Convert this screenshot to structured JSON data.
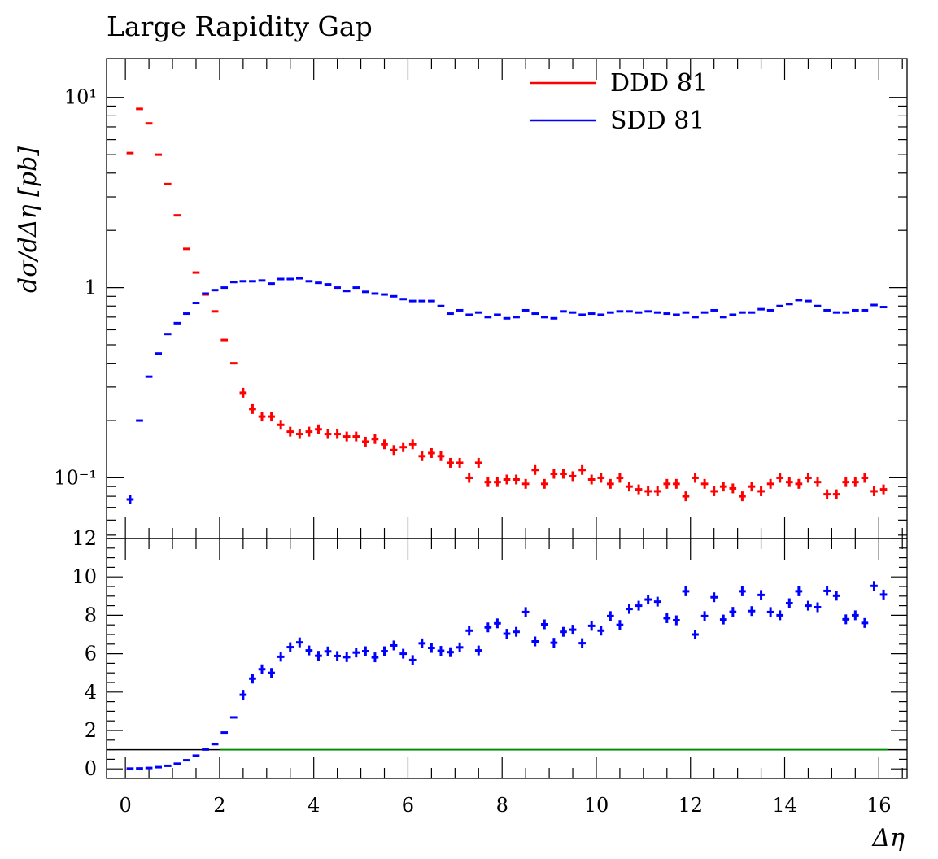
{
  "chart_data": {
    "type": "scatter",
    "title": "Large Rapidity Gap",
    "ylabel": "dσ/dΔη [pb]",
    "xlabel": "Δη",
    "legend": {
      "placement": "top-right",
      "entries": [
        "DDD 81",
        "SDD 81"
      ]
    },
    "colors": {
      "DDD 81": "#ff0000",
      "SDD 81": "#0000ff",
      "ratio_reference": "#00aa00"
    },
    "main": {
      "yscale": "log",
      "ylim": [
        0.048,
        16
      ],
      "xlim": [
        -0.4,
        16.6
      ],
      "y_ticks": [
        {
          "value": 10,
          "label": "10¹"
        },
        {
          "value": 1,
          "label": "1"
        },
        {
          "value": 0.1,
          "label": "10⁻¹"
        }
      ],
      "bin_width": 0.2,
      "x": [
        0.1,
        0.3,
        0.5,
        0.7,
        0.9,
        1.1,
        1.3,
        1.5,
        1.7,
        1.9,
        2.1,
        2.3,
        2.5,
        2.7,
        2.9,
        3.1,
        3.3,
        3.5,
        3.7,
        3.9,
        4.1,
        4.3,
        4.5,
        4.7,
        4.9,
        5.1,
        5.3,
        5.5,
        5.7,
        5.9,
        6.1,
        6.3,
        6.5,
        6.7,
        6.9,
        7.1,
        7.3,
        7.5,
        7.7,
        7.9,
        8.1,
        8.3,
        8.5,
        8.7,
        8.9,
        9.1,
        9.3,
        9.5,
        9.7,
        9.9,
        10.1,
        10.3,
        10.5,
        10.7,
        10.9,
        11.1,
        11.3,
        11.5,
        11.7,
        11.9,
        12.1,
        12.3,
        12.5,
        12.7,
        12.9,
        13.1,
        13.3,
        13.5,
        13.7,
        13.9,
        14.1,
        14.3,
        14.5,
        14.7,
        14.9,
        15.1,
        15.3,
        15.5,
        15.7,
        15.9,
        16.1
      ],
      "series": [
        {
          "name": "DDD 81",
          "values": [
            5.1,
            8.7,
            7.3,
            5.0,
            3.5,
            2.4,
            1.6,
            1.2,
            0.92,
            0.75,
            0.53,
            0.4,
            0.28,
            0.23,
            0.21,
            0.21,
            0.19,
            0.175,
            0.17,
            0.175,
            0.18,
            0.17,
            0.17,
            0.165,
            0.165,
            0.155,
            0.16,
            0.15,
            0.14,
            0.145,
            0.15,
            0.13,
            0.135,
            0.13,
            0.12,
            0.12,
            0.1,
            0.12,
            0.095,
            0.095,
            0.098,
            0.098,
            0.093,
            0.11,
            0.093,
            0.105,
            0.105,
            0.102,
            0.11,
            0.098,
            0.1,
            0.093,
            0.1,
            0.09,
            0.087,
            0.085,
            0.085,
            0.093,
            0.093,
            0.08,
            0.1,
            0.093,
            0.085,
            0.09,
            0.088,
            0.08,
            0.09,
            0.085,
            0.093,
            0.1,
            0.095,
            0.093,
            0.1,
            0.095,
            0.082,
            0.082,
            0.095,
            0.095,
            0.1,
            0.085,
            0.087
          ]
        },
        {
          "name": "SDD 81",
          "values": [
            0.077,
            0.2,
            0.34,
            0.45,
            0.57,
            0.65,
            0.73,
            0.83,
            0.93,
            0.97,
            1.0,
            1.07,
            1.08,
            1.08,
            1.09,
            1.05,
            1.11,
            1.11,
            1.12,
            1.08,
            1.06,
            1.04,
            1.0,
            0.96,
            1.0,
            0.95,
            0.93,
            0.92,
            0.9,
            0.87,
            0.85,
            0.85,
            0.85,
            0.8,
            0.73,
            0.76,
            0.72,
            0.74,
            0.7,
            0.72,
            0.69,
            0.7,
            0.76,
            0.73,
            0.7,
            0.69,
            0.75,
            0.74,
            0.72,
            0.73,
            0.72,
            0.74,
            0.75,
            0.75,
            0.74,
            0.75,
            0.74,
            0.73,
            0.72,
            0.74,
            0.7,
            0.74,
            0.76,
            0.7,
            0.72,
            0.74,
            0.74,
            0.77,
            0.76,
            0.8,
            0.82,
            0.86,
            0.85,
            0.8,
            0.76,
            0.74,
            0.74,
            0.76,
            0.76,
            0.81,
            0.79
          ]
        }
      ]
    },
    "ratio": {
      "ylim": [
        -0.5,
        12
      ],
      "y_ticks": [
        0,
        2,
        4,
        6,
        8,
        10,
        12
      ],
      "reference_line": 1,
      "series": [
        {
          "name": "SDD 81",
          "values": [
            0.015,
            0.023,
            0.046,
            0.09,
            0.16,
            0.27,
            0.45,
            0.69,
            1.01,
            1.29,
            1.89,
            2.68,
            3.86,
            4.7,
            5.19,
            5.0,
            5.84,
            6.34,
            6.59,
            6.17,
            5.89,
            6.12,
            5.88,
            5.82,
            6.06,
            6.13,
            5.81,
            6.13,
            6.43,
            6.0,
            5.67,
            6.54,
            6.3,
            6.15,
            6.08,
            6.33,
            7.2,
            6.17,
            7.37,
            7.58,
            7.04,
            7.14,
            8.17,
            6.64,
            7.53,
            6.57,
            7.14,
            7.25,
            6.55,
            7.45,
            7.2,
            7.96,
            7.5,
            8.33,
            8.5,
            8.82,
            8.71,
            7.85,
            7.74,
            9.25,
            7.0,
            7.96,
            8.94,
            7.78,
            8.18,
            9.25,
            8.22,
            9.06,
            8.17,
            8.0,
            8.63,
            9.25,
            8.5,
            8.42,
            9.27,
            9.02,
            7.79,
            8.0,
            7.6,
            9.53,
            9.08
          ]
        }
      ]
    },
    "tick_labels": [
      "0",
      "2",
      "4",
      "6",
      "8",
      "10",
      "12",
      "14",
      "16"
    ]
  }
}
